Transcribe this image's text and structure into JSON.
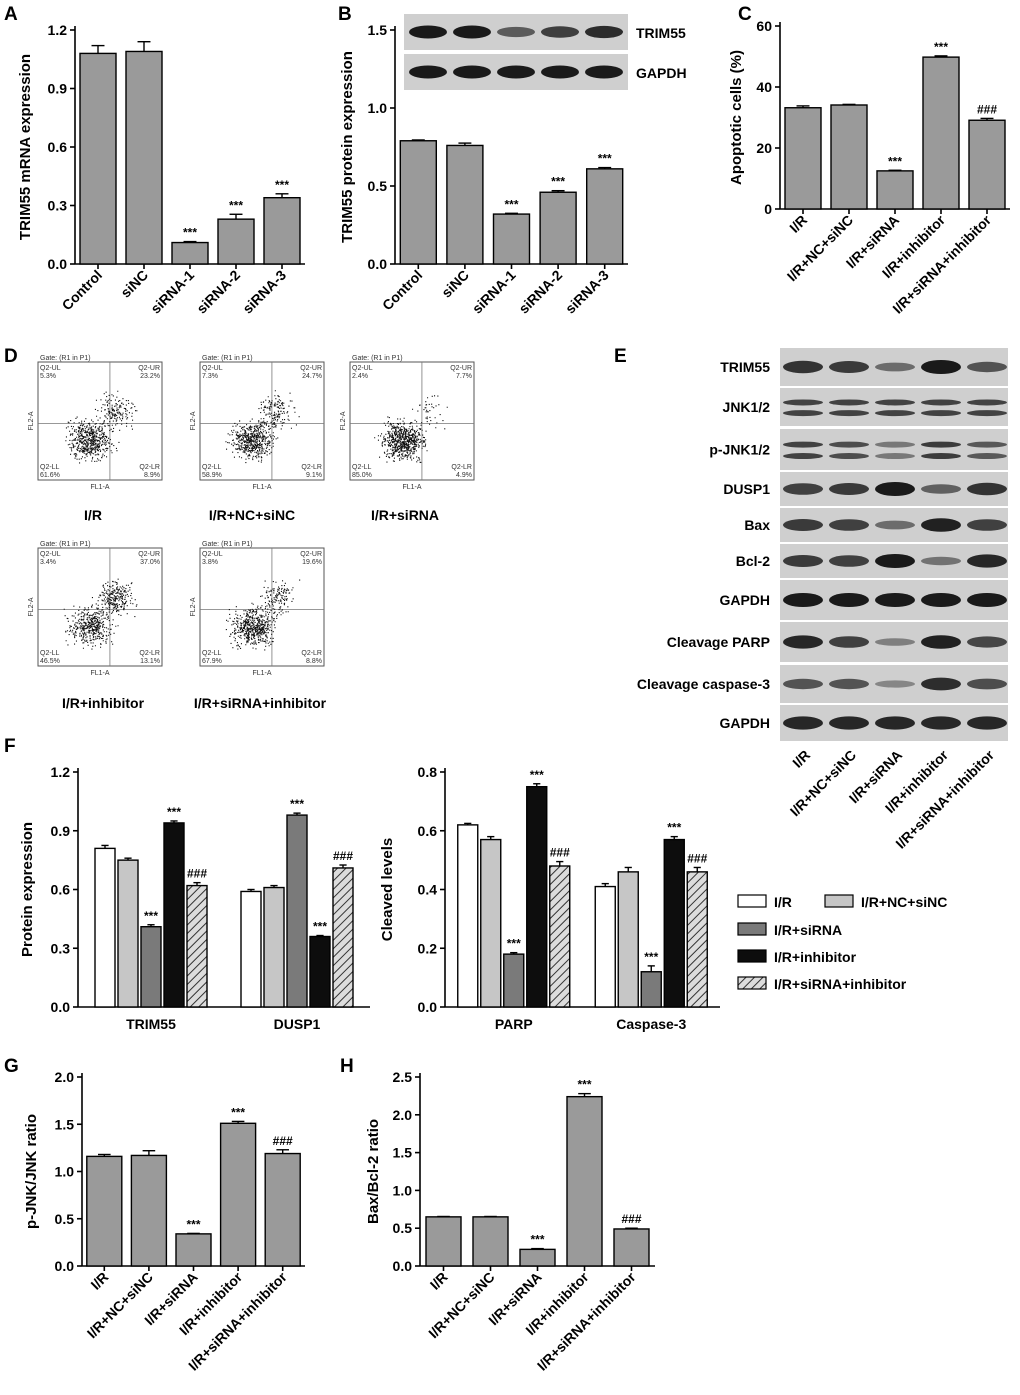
{
  "colors": {
    "bar_gray": "#9a9a9a",
    "bar_light": "#c6c6c6",
    "bar_dark": "#7a7a7a",
    "bar_black": "#0d0d0d",
    "blot_bg": "#cfcfcf",
    "band": "#1a1a1a",
    "dot": "#111111"
  },
  "groups": [
    "I/R",
    "I/R+NC+siNC",
    "I/R+siRNA",
    "I/R+inhibitor",
    "I/R+siRNA+inhibitor"
  ],
  "chart_data": [
    {
      "id": "A",
      "panel_label": "A",
      "type": "bar",
      "ylabel": "TRIM55 mRNA expression",
      "xlabel": "",
      "ylim": [
        0,
        1.2
      ],
      "yticks": [
        "0.0",
        "0.3",
        "0.6",
        "0.9",
        "1.2"
      ],
      "categories": [
        "Control",
        "siNC",
        "siRNA-1",
        "siRNA-2",
        "siRNA-3"
      ],
      "values": [
        1.08,
        1.09,
        0.11,
        0.23,
        0.34
      ],
      "errors": [
        0.04,
        0.05,
        0.005,
        0.025,
        0.02
      ],
      "annotations": [
        "",
        "",
        "***",
        "***",
        "***"
      ]
    },
    {
      "id": "B",
      "panel_label": "B",
      "type": "bar",
      "ylabel": "TRIM55 protein expression",
      "xlabel": "",
      "ylim": [
        0,
        1.5
      ],
      "yticks": [
        "0.0",
        "0.5",
        "1.0",
        "1.5"
      ],
      "categories": [
        "Control",
        "siNC",
        "siRNA-1",
        "siRNA-2",
        "siRNA-3"
      ],
      "values": [
        0.79,
        0.76,
        0.32,
        0.46,
        0.61
      ],
      "errors": [
        0.005,
        0.015,
        0.005,
        0.01,
        0.008
      ],
      "annotations": [
        "",
        "",
        "***",
        "***",
        "***"
      ]
    },
    {
      "id": "C",
      "panel_label": "C",
      "type": "bar",
      "ylabel": "Apoptotic cells (%)",
      "xlabel": "",
      "ylim": [
        0,
        60
      ],
      "yticks": [
        "0",
        "20",
        "40",
        "60"
      ],
      "categories": [
        "I/R",
        "I/R+NC+siNC",
        "I/R+siRNA",
        "I/R+inhibitor",
        "I/R+siRNA+inhibitor"
      ],
      "values": [
        33.2,
        34.1,
        12.5,
        49.8,
        29.1
      ],
      "errors": [
        0.6,
        0.2,
        0.2,
        0.4,
        0.6
      ],
      "annotations": [
        "",
        "",
        "***",
        "***",
        "###"
      ]
    },
    {
      "id": "F1",
      "panel_label": "F",
      "type": "bar",
      "ylabel": "Protein expression",
      "xlabel": "",
      "ylim": [
        0,
        1.2
      ],
      "yticks": [
        "0.0",
        "0.3",
        "0.6",
        "0.9",
        "1.2"
      ],
      "categories": [
        "TRIM55",
        "DUSP1"
      ],
      "series": [
        {
          "name": "I/R",
          "values": [
            0.81,
            0.59
          ],
          "errors": [
            0.015,
            0.01
          ],
          "annotations": [
            "",
            ""
          ]
        },
        {
          "name": "I/R+NC+siNC",
          "values": [
            0.75,
            0.61
          ],
          "errors": [
            0.01,
            0.01
          ],
          "annotations": [
            "",
            ""
          ]
        },
        {
          "name": "I/R+siRNA",
          "values": [
            0.41,
            0.98
          ],
          "errors": [
            0.01,
            0.01
          ],
          "annotations": [
            "***",
            "***"
          ]
        },
        {
          "name": "I/R+inhibitor",
          "values": [
            0.94,
            0.36
          ],
          "errors": [
            0.01,
            0.005
          ],
          "annotations": [
            "***",
            "***"
          ]
        },
        {
          "name": "I/R+siRNA+inhibitor",
          "values": [
            0.62,
            0.71
          ],
          "errors": [
            0.015,
            0.015
          ],
          "annotations": [
            "###",
            "###"
          ]
        }
      ]
    },
    {
      "id": "F2",
      "panel_label": "",
      "type": "bar",
      "ylabel": "Cleaved levels",
      "xlabel": "",
      "ylim": [
        0,
        0.8
      ],
      "yticks": [
        "0.0",
        "0.2",
        "0.4",
        "0.6",
        "0.8"
      ],
      "categories": [
        "PARP",
        "Caspase-3"
      ],
      "series": [
        {
          "name": "I/R",
          "values": [
            0.62,
            0.41
          ],
          "errors": [
            0.005,
            0.01
          ],
          "annotations": [
            "",
            ""
          ]
        },
        {
          "name": "I/R+NC+siNC",
          "values": [
            0.57,
            0.46
          ],
          "errors": [
            0.01,
            0.015
          ],
          "annotations": [
            "",
            ""
          ]
        },
        {
          "name": "I/R+siRNA",
          "values": [
            0.18,
            0.12
          ],
          "errors": [
            0.005,
            0.02
          ],
          "annotations": [
            "***",
            "***"
          ]
        },
        {
          "name": "I/R+inhibitor",
          "values": [
            0.75,
            0.57
          ],
          "errors": [
            0.01,
            0.01
          ],
          "annotations": [
            "***",
            "***"
          ]
        },
        {
          "name": "I/R+siRNA+inhibitor",
          "values": [
            0.48,
            0.46
          ],
          "errors": [
            0.015,
            0.015
          ],
          "annotations": [
            "###",
            "###"
          ]
        }
      ],
      "legend": [
        "I/R",
        "I/R+NC+siNC",
        "I/R+siRNA",
        "I/R+inhibitor",
        "I/R+siRNA+inhibitor"
      ],
      "legend_position": "right"
    },
    {
      "id": "G",
      "panel_label": "G",
      "type": "bar",
      "ylabel": "p-JNK/JNK ratio",
      "xlabel": "",
      "ylim": [
        0,
        2.0
      ],
      "yticks": [
        "0.0",
        "0.5",
        "1.0",
        "1.5",
        "2.0"
      ],
      "categories": [
        "I/R",
        "I/R+NC+siNC",
        "I/R+siRNA",
        "I/R+inhibitor",
        "I/R+siRNA+inhibitor"
      ],
      "values": [
        1.16,
        1.17,
        0.34,
        1.51,
        1.19
      ],
      "errors": [
        0.02,
        0.05,
        0.005,
        0.02,
        0.04
      ],
      "annotations": [
        "",
        "",
        "***",
        "***",
        "###"
      ]
    },
    {
      "id": "H",
      "panel_label": "H",
      "type": "bar",
      "ylabel": "Bax/Bcl-2 ratio",
      "xlabel": "",
      "ylim": [
        0,
        2.5
      ],
      "yticks": [
        "0.0",
        "0.5",
        "1.0",
        "1.5",
        "2.0",
        "2.5"
      ],
      "categories": [
        "I/R",
        "I/R+NC+siNC",
        "I/R+siRNA",
        "I/R+inhibitor",
        "I/R+siRNA+inhibitor"
      ],
      "values": [
        0.65,
        0.65,
        0.22,
        2.24,
        0.49
      ],
      "errors": [
        0.005,
        0.005,
        0.01,
        0.04,
        0.01
      ],
      "annotations": [
        "",
        "",
        "***",
        "***",
        "###"
      ]
    }
  ],
  "blot_B": {
    "labels": [
      "TRIM55",
      "GAPDH"
    ]
  },
  "blot_E": {
    "panel_label": "E",
    "rows": [
      "TRIM55",
      "JNK1/2",
      "p-JNK1/2",
      "DUSP1",
      "Bax",
      "Bcl-2",
      "GAPDH",
      "Cleavage PARP",
      "Cleavage caspase-3",
      "GAPDH"
    ],
    "lanes": [
      "I/R",
      "I/R+NC+siNC",
      "I/R+siRNA",
      "I/R+inhibitor",
      "I/R+siRNA+inhibitor"
    ]
  },
  "flow_D": {
    "panel_label": "D",
    "plots": [
      {
        "caption": "I/R",
        "gate": "Gate: (R1 in P1)",
        "ul": "5.3%",
        "ur": "23.2%",
        "ll": "61.6%",
        "lr": "8.9%"
      },
      {
        "caption": "I/R+NC+siNC",
        "gate": "Gate: (R1 in P1)",
        "ul": "7.3%",
        "ur": "24.7%",
        "ll": "58.9%",
        "lr": "9.1%"
      },
      {
        "caption": "I/R+siRNA",
        "gate": "Gate: (R1 in P1)",
        "ul": "2.4%",
        "ur": "7.7%",
        "ll": "85.0%",
        "lr": "4.9%"
      },
      {
        "caption": "I/R+inhibitor",
        "gate": "Gate: (R1 in P1)",
        "ul": "3.4%",
        "ur": "37.0%",
        "ll": "46.5%",
        "lr": "13.1%"
      },
      {
        "caption": "I/R+siRNA+inhibitor",
        "gate": "Gate: (R1 in P1)",
        "ul": "3.8%",
        "ur": "19.6%",
        "ll": "67.9%",
        "lr": "8.8%"
      }
    ],
    "quad_labels": {
      "ul": "Q2-UL",
      "ur": "Q2-UR",
      "ll": "Q2-LL",
      "lr": "Q2-LR"
    },
    "axis_x": "FL1-A",
    "axis_y": "FL2-A"
  }
}
